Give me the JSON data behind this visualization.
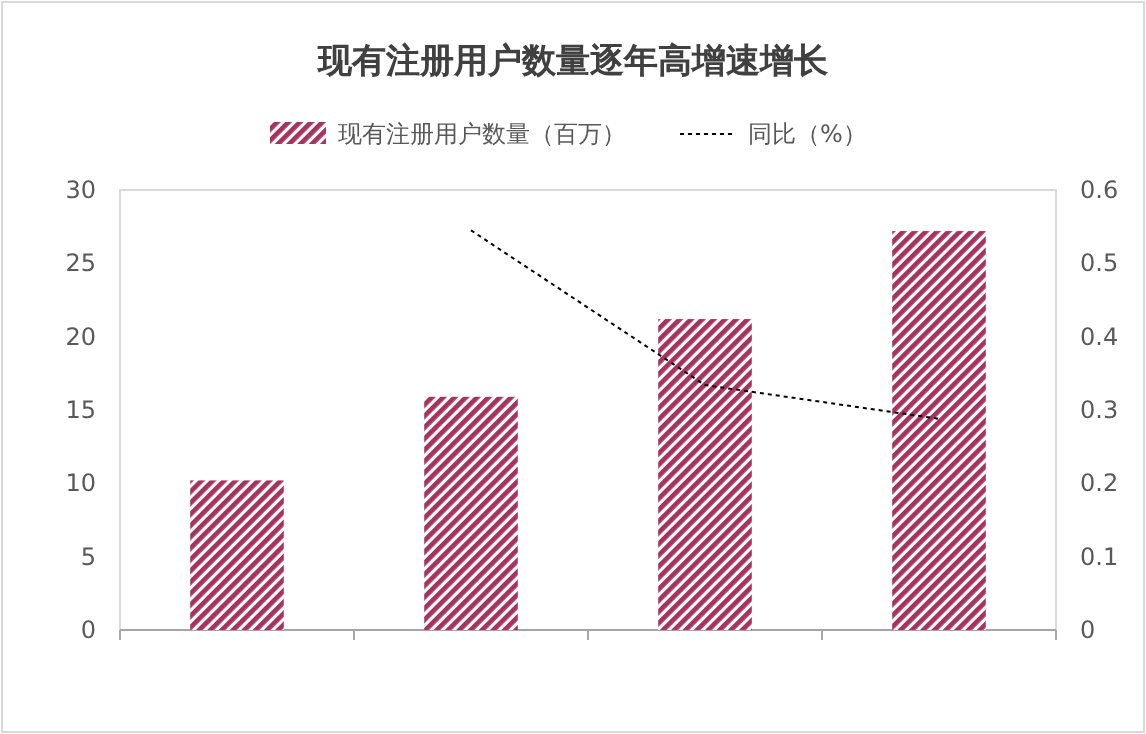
{
  "chart_data": {
    "type": "bar",
    "title": "现有注册用户数量逐年高增速增长",
    "categories": [
      null,
      null,
      null,
      null
    ],
    "series": [
      {
        "name": "现有注册用户数量（百万）",
        "color": "#a8325e",
        "values": [
          10.2,
          15.9,
          21.2,
          27.2
        ]
      },
      {
        "name": "同比（%）",
        "type": "line",
        "axis": "y2",
        "color": "#000000",
        "line_style": "dotted",
        "values": [
          null,
          0.545,
          0.334,
          0.288
        ]
      }
    ],
    "ylim": [
      0,
      30
    ],
    "yticks": [
      0,
      5,
      10,
      15,
      20,
      25,
      30
    ],
    "y2lim": [
      0,
      0.6
    ],
    "y2ticks": [
      0,
      0.1,
      0.2,
      0.3,
      0.4,
      0.5,
      0.6
    ],
    "legend": "top",
    "grid": false
  }
}
